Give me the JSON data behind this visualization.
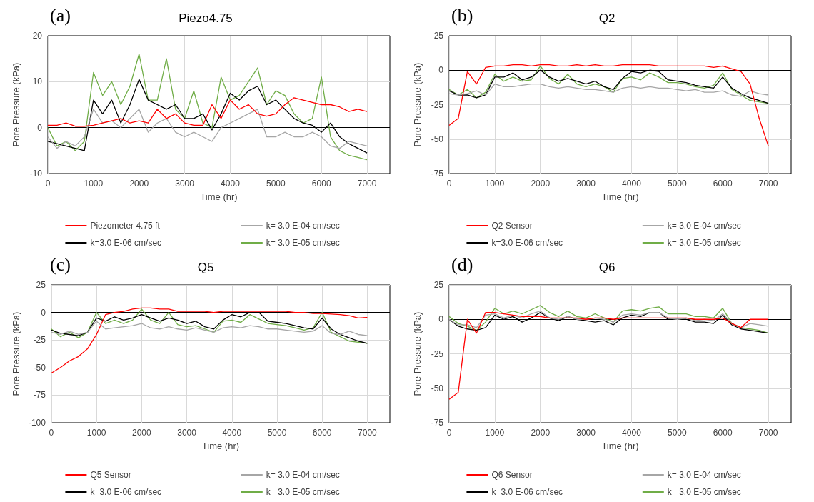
{
  "chart_data": [
    {
      "type": "line",
      "title": "Piezo4.75",
      "xlabel": "Time (hr)",
      "ylabel": "Pore Pressure (kPa)",
      "annotations": [
        "(a)"
      ],
      "xlim": [
        0,
        7500
      ],
      "xticks": [
        0,
        1000,
        2000,
        3000,
        4000,
        5000,
        6000,
        7000
      ],
      "ylim": [
        -10,
        20
      ],
      "yticks": [
        -10,
        0,
        10,
        20
      ],
      "grid": true,
      "legend": "bottom",
      "marker": "none",
      "line_style": "solid",
      "ref_lines": [
        {
          "axis": "y",
          "value": 0,
          "color": "#000000"
        }
      ],
      "x": [
        0,
        200,
        400,
        600,
        800,
        1000,
        1200,
        1400,
        1600,
        1800,
        2000,
        2200,
        2400,
        2600,
        2800,
        3000,
        3200,
        3400,
        3600,
        3800,
        4000,
        4200,
        4400,
        4600,
        4800,
        5000,
        5200,
        5400,
        5600,
        5800,
        6000,
        6200,
        6400,
        6600,
        6800,
        7000
      ],
      "series": [
        {
          "name": "Piezometer 4.75 ft",
          "color": "#ff0000",
          "values": [
            0.5,
            0.5,
            1,
            0.3,
            0.3,
            0.5,
            1,
            1.5,
            2,
            1,
            1.5,
            1,
            4,
            2,
            3,
            1,
            0.5,
            0.5,
            5,
            2,
            6,
            4,
            5,
            3,
            2.5,
            3,
            5,
            6.5,
            6,
            5.5,
            5,
            5,
            4.5,
            3.5,
            4,
            3.5
          ]
        },
        {
          "name": "k= 3.0 E-04 cm/sec",
          "color": "#a6a6a6",
          "values": [
            -2,
            -4.5,
            -3,
            -4,
            -2,
            4,
            1,
            1.5,
            0,
            2,
            4,
            -1,
            1,
            2,
            -1,
            -2,
            -1,
            -2,
            -3,
            0,
            1,
            2,
            3,
            4,
            -2,
            -2,
            -1,
            -2,
            -2,
            -1,
            -2,
            -4,
            -4.5,
            -3,
            -3.5,
            -4
          ]
        },
        {
          "name": "k=3.0 E-06 cm/sec",
          "color": "#000000",
          "values": [
            -3,
            -3.5,
            -4,
            -4.5,
            -5,
            6,
            3,
            6,
            1,
            5,
            10.5,
            6,
            5,
            4,
            5,
            2,
            2,
            3,
            -0.5,
            3,
            7.5,
            6,
            8,
            9,
            5,
            6,
            4,
            2,
            1,
            0.5,
            -1,
            1,
            -2,
            -3.5,
            -4.5,
            -5.5
          ]
        },
        {
          "name": "k= 3.0 E-05 cm/sec",
          "color": "#70ad47",
          "values": [
            0,
            -4,
            -3,
            -5,
            -3,
            12,
            7,
            10,
            5,
            9,
            16,
            6,
            6,
            15,
            4,
            2,
            8,
            1,
            0,
            11,
            6,
            7,
            10,
            13,
            5,
            8,
            7,
            3,
            1,
            2,
            11,
            -2,
            -5,
            -6,
            -6.5,
            -7
          ]
        }
      ]
    },
    {
      "type": "line",
      "title": "Q2",
      "xlabel": "Time (hr)",
      "ylabel": "Pore Pressure (kPa)",
      "annotations": [
        "(b)"
      ],
      "xlim": [
        0,
        7500
      ],
      "xticks": [
        0,
        1000,
        2000,
        3000,
        4000,
        5000,
        6000,
        7000
      ],
      "ylim": [
        -75,
        25
      ],
      "yticks": [
        -75,
        -50,
        -25,
        0,
        25
      ],
      "grid": true,
      "legend": "bottom",
      "marker": "none",
      "line_style": "solid",
      "ref_lines": [
        {
          "axis": "y",
          "value": 0,
          "color": "#000000"
        }
      ],
      "x": [
        0,
        200,
        400,
        600,
        800,
        1000,
        1200,
        1400,
        1600,
        1800,
        2000,
        2200,
        2400,
        2600,
        2800,
        3000,
        3200,
        3400,
        3600,
        3800,
        4000,
        4200,
        4400,
        4600,
        4800,
        5000,
        5200,
        5400,
        5600,
        5800,
        6000,
        6200,
        6400,
        6600,
        6800,
        7000
      ],
      "series": [
        {
          "name": "Q2 Sensor",
          "color": "#ff0000",
          "values": [
            -40,
            -35,
            -1,
            -10,
            2,
            3,
            3,
            4,
            4,
            3,
            4,
            4,
            3,
            3,
            4,
            3,
            4,
            3,
            3,
            4,
            4,
            4,
            4,
            3,
            3,
            3,
            3,
            3,
            3,
            2,
            3,
            1,
            -1,
            -10,
            -35,
            -55
          ]
        },
        {
          "name": "k= 3.0 E-04 cm/sec",
          "color": "#a6a6a6",
          "values": [
            -17,
            -18,
            -17,
            -15,
            -18,
            -10,
            -12,
            -12,
            -11,
            -10,
            -10,
            -12,
            -13,
            -12,
            -13,
            -14,
            -14,
            -15,
            -16,
            -13,
            -12,
            -13,
            -12,
            -13,
            -13,
            -14,
            -15,
            -14,
            -16,
            -16,
            -15,
            -18,
            -19,
            -15,
            -17,
            -18
          ]
        },
        {
          "name": "k=3.0 E-06 cm/sec",
          "color": "#000000",
          "values": [
            -15,
            -18,
            -18,
            -20,
            -18,
            -5,
            -5,
            -2,
            -7,
            -5,
            0,
            -5,
            -8,
            -6,
            -8,
            -10,
            -8,
            -12,
            -14,
            -6,
            -1,
            -2,
            0,
            -1,
            -7,
            -8,
            -9,
            -11,
            -12,
            -13,
            -5,
            -13,
            -17,
            -20,
            -22,
            -24
          ]
        },
        {
          "name": "k= 3.0 E-05 cm/sec",
          "color": "#70ad47",
          "values": [
            -14,
            -18,
            -14,
            -20,
            -16,
            -3,
            -8,
            -5,
            -8,
            -7,
            3,
            -6,
            -10,
            -3,
            -10,
            -12,
            -10,
            -12,
            -16,
            -6,
            -5,
            -7,
            -2,
            -5,
            -9,
            -9,
            -10,
            -12,
            -13,
            -11,
            -2,
            -14,
            -18,
            -22,
            -23,
            -24
          ]
        }
      ]
    },
    {
      "type": "line",
      "title": "Q5",
      "xlabel": "Time (hr)",
      "ylabel": "Pore Pressure (kPa)",
      "annotations": [
        "(c)"
      ],
      "xlim": [
        0,
        7500
      ],
      "xticks": [
        0,
        1000,
        2000,
        3000,
        4000,
        5000,
        6000,
        7000
      ],
      "ylim": [
        -100,
        25
      ],
      "yticks": [
        -100,
        -75,
        -50,
        -25,
        0,
        25
      ],
      "grid": true,
      "legend": "bottom",
      "marker": "none",
      "line_style": "solid",
      "ref_lines": [
        {
          "axis": "y",
          "value": 0,
          "color": "#000000"
        }
      ],
      "x": [
        0,
        200,
        400,
        600,
        800,
        1000,
        1200,
        1400,
        1600,
        1800,
        2000,
        2200,
        2400,
        2600,
        2800,
        3000,
        3200,
        3400,
        3600,
        3800,
        4000,
        4200,
        4400,
        4600,
        4800,
        5000,
        5200,
        5400,
        5600,
        5800,
        6000,
        6200,
        6400,
        6600,
        6800,
        7000
      ],
      "series": [
        {
          "name": "Q5 Sensor",
          "color": "#ff0000",
          "values": [
            -55,
            -50,
            -44,
            -40,
            -33,
            -20,
            -2,
            0,
            1,
            3,
            4,
            4,
            3,
            3,
            1,
            1,
            1,
            1,
            0,
            1,
            1,
            1,
            1,
            1,
            1,
            1,
            1,
            0,
            0,
            -1,
            -1,
            -1.5,
            -2,
            -3,
            -5,
            -4.5
          ]
        },
        {
          "name": "k= 3.0 E-04 cm/sec",
          "color": "#a6a6a6",
          "values": [
            -18,
            -20,
            -17,
            -20,
            -18,
            -8,
            -15,
            -14,
            -13,
            -12,
            -10,
            -14,
            -15,
            -13,
            -15,
            -16,
            -14,
            -16,
            -18,
            -14,
            -13,
            -14,
            -12,
            -13,
            -15,
            -15,
            -16,
            -17,
            -18,
            -17,
            -12,
            -19,
            -20,
            -17,
            -20,
            -21
          ]
        },
        {
          "name": "k=3.0 E-06 cm/sec",
          "color": "#000000",
          "values": [
            -16,
            -19,
            -20,
            -21,
            -18,
            -5,
            -8,
            -4,
            -7,
            -5,
            -2,
            -5,
            -8,
            -5,
            -7,
            -10,
            -8,
            -13,
            -15,
            -7,
            -2,
            -4,
            0,
            0,
            -8,
            -9,
            -10,
            -12,
            -14,
            -15,
            -5,
            -15,
            -20,
            -23,
            -26,
            -28
          ]
        },
        {
          "name": "k= 3.0 E-05 cm/sec",
          "color": "#70ad47",
          "values": [
            -15,
            -22,
            -18,
            -23,
            -18,
            0,
            -10,
            -7,
            -10,
            -7,
            3,
            -7,
            -10,
            0,
            -11,
            -13,
            -12,
            -15,
            -18,
            -8,
            -7,
            -9,
            -2,
            -6,
            -10,
            -11,
            -12,
            -14,
            -16,
            -14,
            0,
            -18,
            -22,
            -26,
            -27,
            -28
          ]
        }
      ]
    },
    {
      "type": "line",
      "title": "Q6",
      "xlabel": "Time (hr)",
      "ylabel": "Pore Pressure (kPa)",
      "annotations": [
        "(d)"
      ],
      "xlim": [
        0,
        7500
      ],
      "xticks": [
        0,
        1000,
        2000,
        3000,
        4000,
        5000,
        6000,
        7000
      ],
      "ylim": [
        -75,
        25
      ],
      "yticks": [
        -75,
        -50,
        -25,
        0,
        25
      ],
      "grid": true,
      "legend": "bottom",
      "marker": "none",
      "line_style": "solid",
      "ref_lines": [
        {
          "axis": "y",
          "value": 0,
          "color": "#000000"
        }
      ],
      "x": [
        0,
        200,
        400,
        600,
        800,
        1000,
        1200,
        1400,
        1600,
        1800,
        2000,
        2200,
        2400,
        2600,
        2800,
        3000,
        3200,
        3400,
        3600,
        3800,
        4000,
        4200,
        4400,
        4600,
        4800,
        5000,
        5200,
        5400,
        5600,
        5800,
        6000,
        6200,
        6400,
        6600,
        6800,
        7000
      ],
      "series": [
        {
          "name": "Q6 Sensor",
          "color": "#ff0000",
          "values": [
            -58,
            -53,
            0,
            -10,
            5,
            5,
            4,
            3,
            2,
            2,
            2,
            1,
            1,
            1,
            1,
            0,
            1,
            1,
            0,
            1,
            1,
            1,
            1,
            1,
            1,
            1,
            1,
            0,
            0,
            0,
            1,
            -3,
            -6,
            0,
            0,
            0
          ]
        },
        {
          "name": "k= 3.0 E-04 cm/sec",
          "color": "#a6a6a6",
          "values": [
            0,
            -4,
            -4,
            -6,
            3,
            4,
            1,
            3,
            1,
            4,
            6,
            1,
            0,
            2,
            0,
            0,
            1,
            0,
            -2,
            3,
            4,
            3,
            5,
            5,
            1,
            0,
            1,
            -1,
            0,
            -1,
            4,
            -3,
            -6,
            -3,
            -4,
            -5
          ]
        },
        {
          "name": "k=3.0 E-06 cm/sec",
          "color": "#000000",
          "values": [
            0,
            -5,
            -7,
            -8,
            -6,
            3,
            0,
            2,
            -2,
            1,
            5,
            1,
            -1,
            2,
            0,
            -1,
            -2,
            -1,
            -4,
            1,
            3,
            2,
            5,
            5,
            0,
            0,
            0,
            -2,
            -2,
            -3,
            3,
            -4,
            -7,
            -8,
            -9,
            -10
          ]
        },
        {
          "name": "k= 3.0 E-05 cm/sec",
          "color": "#70ad47",
          "values": [
            2,
            -3,
            -5,
            -8,
            -2,
            8,
            4,
            6,
            4,
            7,
            10,
            5,
            2,
            6,
            2,
            1,
            4,
            1,
            -2,
            6,
            7,
            6,
            8,
            9,
            4,
            4,
            4,
            2,
            2,
            1,
            8,
            -3,
            -6,
            -7,
            -8,
            -10
          ]
        }
      ]
    }
  ]
}
